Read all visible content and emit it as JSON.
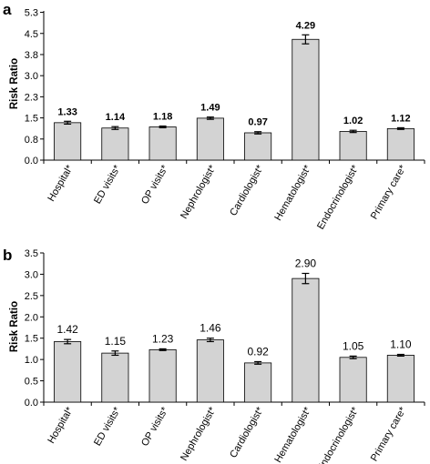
{
  "chart_data": [
    {
      "type": "bar",
      "panel": "a",
      "ylabel": "Risk Ratio",
      "xlabel": "",
      "ylim": [
        0.0,
        5.3
      ],
      "yticks": [
        "0.0",
        "0.8",
        "1.5",
        "2.3",
        "3.0",
        "3.8",
        "4.5",
        "5.3"
      ],
      "ytick_values": [
        0.0,
        0.75,
        1.5,
        2.25,
        3.0,
        3.75,
        4.5,
        5.25
      ],
      "categories": [
        "Hospital*",
        "ED visits*",
        "OP visits*",
        "Nephrologist*",
        "Cardiologist*",
        "Hematologist*",
        "Endocrinologist*",
        "Primary care*"
      ],
      "values": [
        1.33,
        1.14,
        1.18,
        1.49,
        0.97,
        4.29,
        1.02,
        1.12
      ],
      "data_labels": [
        "1.33",
        "1.14",
        "1.18",
        "1.49",
        "0.97",
        "4.29",
        "1.02",
        "1.12"
      ],
      "error_low": [
        1.28,
        1.09,
        1.15,
        1.45,
        0.93,
        4.13,
        0.98,
        1.09
      ],
      "error_high": [
        1.38,
        1.19,
        1.21,
        1.53,
        1.01,
        4.45,
        1.06,
        1.15
      ],
      "grid": false,
      "bar_color": "#d3d3d3",
      "bar_stroke": "#000000",
      "label_bold": true
    },
    {
      "type": "bar",
      "panel": "b",
      "ylabel": "Risk Ratio",
      "xlabel": "",
      "ylim": [
        0.0,
        3.5
      ],
      "yticks": [
        "0.0",
        "0.5",
        "1.0",
        "1.5",
        "2.0",
        "2.5",
        "3.0",
        "3.5"
      ],
      "ytick_values": [
        0.0,
        0.5,
        1.0,
        1.5,
        2.0,
        2.5,
        3.0,
        3.5
      ],
      "categories": [
        "Hospital*",
        "ED visits*",
        "OP visits*",
        "Nephrologist*",
        "Cardiologist*",
        "Hematologist*",
        "Endocrinologist*",
        "Primary care*"
      ],
      "values": [
        1.42,
        1.15,
        1.23,
        1.46,
        0.92,
        2.9,
        1.05,
        1.1
      ],
      "data_labels": [
        "1.42",
        "1.15",
        "1.23",
        "1.46",
        "0.92",
        "2.90",
        "1.05",
        "1.10"
      ],
      "error_low": [
        1.37,
        1.1,
        1.21,
        1.42,
        0.89,
        2.78,
        1.02,
        1.08
      ],
      "error_high": [
        1.47,
        1.2,
        1.25,
        1.5,
        0.95,
        3.02,
        1.08,
        1.12
      ],
      "grid": false,
      "bar_color": "#d3d3d3",
      "bar_stroke": "#000000",
      "label_bold": false
    }
  ]
}
